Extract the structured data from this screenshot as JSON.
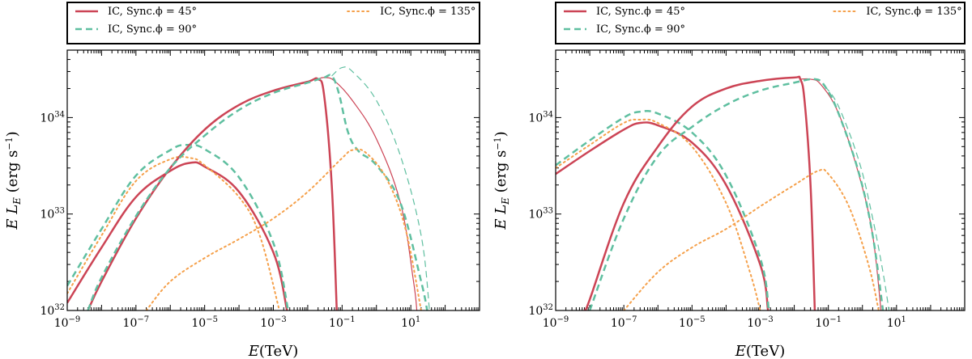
{
  "chart_data": [
    {
      "type": "line",
      "panel": "left",
      "xlabel": "E(TeV)",
      "ylabel": "E L_E (erg s^-1)",
      "x_scale": "log",
      "y_scale": "log",
      "xlim": [
        1e-09,
        1000
      ],
      "ylim": [
        1e+32,
        5e+34
      ],
      "x_ticks": [
        "10^-9",
        "10^-7",
        "10^-5",
        "10^-3",
        "10^-1",
        "10^1"
      ],
      "y_ticks": [
        "10^32",
        "10^33",
        "10^34"
      ],
      "legend_placement": "top",
      "legend": [
        {
          "label": "IC, Sync.ϕ = 45°",
          "style": "solid",
          "color": "#cc4455"
        },
        {
          "label": "IC, Sync.ϕ = 90°",
          "style": "dashed",
          "color": "#5fbfa0"
        },
        {
          "label": "IC, Sync.ϕ = 135°",
          "style": "dotted",
          "color": "#f5a04a"
        }
      ],
      "series": [
        {
          "phi": 45,
          "component": "Sync",
          "style": "solid",
          "color": "#cc4455",
          "width": 2.5,
          "points": [
            [
              1e-09,
              1.2e+32
            ],
            [
              1e-08,
              4.5e+32
            ],
            [
              1e-07,
              1.5e+33
            ],
            [
              1e-06,
              2.8e+33
            ],
            [
              4e-06,
              3.4e+33
            ],
            [
              1e-05,
              3.1e+33
            ],
            [
              0.0001,
              1.7e+33
            ],
            [
              0.001,
              4e+32
            ],
            [
              0.0025,
              1e+32
            ]
          ]
        },
        {
          "phi": 90,
          "component": "Sync",
          "style": "dashed",
          "color": "#5fbfa0",
          "width": 2.5,
          "points": [
            [
              1e-09,
              1.8e+32
            ],
            [
              1e-08,
              7e+32
            ],
            [
              1e-07,
              2.5e+33
            ],
            [
              1e-06,
              4.6e+33
            ],
            [
              3e-06,
              5.2e+33
            ],
            [
              1e-05,
              4.7e+33
            ],
            [
              0.0001,
              2.4e+33
            ],
            [
              0.001,
              5e+32
            ],
            [
              0.0027,
              1e+32
            ]
          ]
        },
        {
          "phi": 135,
          "component": "Sync",
          "style": "dotted",
          "color": "#f5a04a",
          "width": 2,
          "points": [
            [
              1e-09,
              1.5e+32
            ],
            [
              1e-08,
              6e+32
            ],
            [
              1e-07,
              2.2e+33
            ],
            [
              1e-06,
              3.7e+33
            ],
            [
              4e-06,
              3.8e+33
            ],
            [
              1e-05,
              3.2e+33
            ],
            [
              0.0001,
              1.5e+33
            ],
            [
              0.0004,
              6e+32
            ],
            [
              0.0015,
              1e+32
            ]
          ]
        },
        {
          "phi": 45,
          "component": "IC",
          "style": "solid",
          "color": "#cc4455",
          "width": 2.5,
          "points": [
            [
              4e-09,
              1e+32
            ],
            [
              1e-08,
              2e+32
            ],
            [
              1e-07,
              9e+32
            ],
            [
              1e-06,
              3e+33
            ],
            [
              1e-05,
              7.5e+33
            ],
            [
              0.0001,
              1.35e+34
            ],
            [
              0.001,
              1.9e+34
            ],
            [
              0.01,
              2.35e+34
            ],
            [
              0.02,
              2.5e+34
            ],
            [
              0.03,
              1.7e+34
            ],
            [
              0.05,
              2e+33
            ],
            [
              0.07,
              1e+32
            ]
          ]
        },
        {
          "phi": 45,
          "component": "IC",
          "style": "solid",
          "color": "#cc4455",
          "width": 1.2,
          "points": [
            [
              0.02,
              2.5e+34
            ],
            [
              0.03,
              2.6e+34
            ],
            [
              0.06,
              2.4e+34
            ],
            [
              0.2,
              1.5e+34
            ],
            [
              1,
              6e+33
            ],
            [
              5,
              1.3e+33
            ],
            [
              12,
              2e+32
            ],
            [
              15,
              1e+32
            ]
          ]
        },
        {
          "phi": 90,
          "component": "IC",
          "style": "dashed",
          "color": "#5fbfa0",
          "width": 2.5,
          "points": [
            [
              4e-09,
              1e+32
            ],
            [
              1e-08,
              2.2e+32
            ],
            [
              1e-07,
              9.5e+32
            ],
            [
              1e-06,
              3e+33
            ],
            [
              1e-05,
              6.5e+33
            ],
            [
              0.0001,
              1.2e+34
            ],
            [
              0.001,
              1.8e+34
            ],
            [
              0.01,
              2.3e+34
            ],
            [
              0.03,
              2.6e+34
            ],
            [
              0.05,
              2.7e+34
            ],
            [
              0.08,
              1.8e+34
            ],
            [
              0.15,
              7e+33
            ],
            [
              0.3,
              4.5e+33
            ],
            [
              1,
              3.2e+33
            ],
            [
              5,
              1.3e+33
            ],
            [
              20,
              2e+32
            ],
            [
              30,
              1e+32
            ]
          ]
        },
        {
          "phi": 90,
          "component": "IC",
          "style": "dashed",
          "color": "#5fbfa0",
          "width": 1.2,
          "points": [
            [
              0.05,
              2.7e+34
            ],
            [
              0.1,
              3.3e+34
            ],
            [
              0.2,
              3e+34
            ],
            [
              1,
              1.5e+34
            ],
            [
              5,
              4e+33
            ],
            [
              20,
              6e+32
            ],
            [
              35,
              1e+32
            ]
          ]
        },
        {
          "phi": 135,
          "component": "IC",
          "style": "dotted",
          "color": "#f5a04a",
          "width": 2,
          "points": [
            [
              2e-07,
              1e+32
            ],
            [
              1e-06,
              2e+32
            ],
            [
              1e-05,
              3.5e+32
            ],
            [
              0.0001,
              5.5e+32
            ],
            [
              0.001,
              9e+32
            ],
            [
              0.01,
              1.7e+33
            ],
            [
              0.1,
              3.8e+33
            ],
            [
              0.2,
              4.6e+33
            ],
            [
              0.5,
              4.3e+33
            ],
            [
              2,
              2.3e+33
            ],
            [
              7,
              7e+32
            ],
            [
              20,
              1e+32
            ]
          ]
        }
      ]
    },
    {
      "type": "line",
      "panel": "right",
      "xlabel": "E(TeV)",
      "ylabel": "E L_E (erg s^-1)",
      "x_scale": "log",
      "y_scale": "log",
      "xlim": [
        1e-09,
        1000
      ],
      "ylim": [
        1e+32,
        5e+34
      ],
      "x_ticks": [
        "10^-9",
        "10^-7",
        "10^-5",
        "10^-3",
        "10^-1",
        "10^1"
      ],
      "y_ticks": [
        "10^32",
        "10^33",
        "10^34"
      ],
      "legend_placement": "top",
      "legend": [
        {
          "label": "IC, Sync.ϕ = 45°",
          "style": "solid",
          "color": "#cc4455"
        },
        {
          "label": "IC, Sync.ϕ = 90°",
          "style": "dashed",
          "color": "#5fbfa0"
        },
        {
          "label": "IC, Sync.ϕ = 135°",
          "style": "dotted",
          "color": "#f5a04a"
        }
      ],
      "series": [
        {
          "phi": 45,
          "component": "Sync",
          "style": "solid",
          "color": "#cc4455",
          "width": 2.5,
          "points": [
            [
              1e-09,
              2.6e+33
            ],
            [
              1e-08,
              4.5e+33
            ],
            [
              1e-07,
              7.5e+33
            ],
            [
              3e-07,
              8.8e+33
            ],
            [
              1e-06,
              8.3e+33
            ],
            [
              1e-05,
              5.5e+33
            ],
            [
              0.0001,
              2e+33
            ],
            [
              0.001,
              3e+32
            ],
            [
              0.0017,
              1e+32
            ]
          ]
        },
        {
          "phi": 90,
          "component": "Sync",
          "style": "dashed",
          "color": "#5fbfa0",
          "width": 2.5,
          "points": [
            [
              1e-09,
              3.2e+33
            ],
            [
              1e-08,
              5.8e+33
            ],
            [
              1e-07,
              1e+34
            ],
            [
              3e-07,
              1.15e+34
            ],
            [
              1e-06,
              1.1e+34
            ],
            [
              1e-05,
              7e+33
            ],
            [
              0.0001,
              2.5e+33
            ],
            [
              0.001,
              3.5e+32
            ],
            [
              0.0018,
              1e+32
            ]
          ]
        },
        {
          "phi": 135,
          "component": "Sync",
          "style": "dotted",
          "color": "#f5a04a",
          "width": 2,
          "points": [
            [
              1e-09,
              3e+33
            ],
            [
              1e-08,
              5.2e+33
            ],
            [
              1e-07,
              8.8e+33
            ],
            [
              3e-07,
              9.5e+33
            ],
            [
              1e-06,
              8.8e+33
            ],
            [
              1e-05,
              5e+33
            ],
            [
              0.0001,
              1.3e+33
            ],
            [
              0.0005,
              2.5e+32
            ],
            [
              0.001,
              1e+32
            ]
          ]
        },
        {
          "phi": 45,
          "component": "IC",
          "style": "solid",
          "color": "#cc4455",
          "width": 2.5,
          "points": [
            [
              7e-09,
              1e+32
            ],
            [
              1e-08,
              1.3e+32
            ],
            [
              1e-07,
              1.3e+33
            ],
            [
              1e-06,
              5e+33
            ],
            [
              1e-05,
              1.3e+34
            ],
            [
              0.0001,
              2e+34
            ],
            [
              0.001,
              2.4e+34
            ],
            [
              0.01,
              2.6e+34
            ],
            [
              0.015,
              2.5e+34
            ],
            [
              0.02,
              1.5e+34
            ],
            [
              0.03,
              2e+33
            ],
            [
              0.04,
              1e+32
            ]
          ]
        },
        {
          "phi": 45,
          "component": "IC",
          "style": "solid",
          "color": "#cc4455",
          "width": 1.2,
          "points": [
            [
              0.015,
              2.5e+34
            ],
            [
              0.03,
              2.5e+34
            ],
            [
              0.06,
              2.2e+34
            ],
            [
              0.2,
              1.1e+34
            ],
            [
              0.8,
              2.5e+33
            ],
            [
              2,
              6e+32
            ],
            [
              3.5,
              1e+32
            ]
          ]
        },
        {
          "phi": 90,
          "component": "IC",
          "style": "dashed",
          "color": "#5fbfa0",
          "width": 2.5,
          "points": [
            [
              1e-08,
              1e+32
            ],
            [
              1e-07,
              9e+32
            ],
            [
              1e-06,
              4e+33
            ],
            [
              1e-05,
              8e+33
            ],
            [
              0.0001,
              1.35e+34
            ],
            [
              0.001,
              1.9e+34
            ],
            [
              0.01,
              2.3e+34
            ],
            [
              0.04,
              2.5e+34
            ],
            [
              0.08,
              2.1e+34
            ],
            [
              0.2,
              1.1e+34
            ],
            [
              0.8,
              2.6e+33
            ],
            [
              2,
              6e+32
            ],
            [
              4,
              1e+32
            ]
          ]
        },
        {
          "phi": 90,
          "component": "IC",
          "style": "dashed",
          "color": "#5fbfa0",
          "width": 1.2,
          "points": [
            [
              0.08,
              2.1e+34
            ],
            [
              0.2,
              1.3e+34
            ],
            [
              0.8,
              3.5e+33
            ],
            [
              2,
              9e+32
            ],
            [
              4,
              2.5e+32
            ],
            [
              6,
              1e+32
            ]
          ]
        },
        {
          "phi": 135,
          "component": "IC",
          "style": "dotted",
          "color": "#f5a04a",
          "width": 2,
          "points": [
            [
              1e-07,
              1e+32
            ],
            [
              1e-06,
              2.5e+32
            ],
            [
              1e-05,
              4.5e+32
            ],
            [
              0.0001,
              7e+32
            ],
            [
              0.001,
              1.2e+33
            ],
            [
              0.01,
              2e+33
            ],
            [
              0.05,
              2.8e+33
            ],
            [
              0.1,
              2.6e+33
            ],
            [
              0.4,
              1.2e+33
            ],
            [
              1.5,
              3e+32
            ],
            [
              3,
              1e+32
            ]
          ]
        }
      ]
    }
  ]
}
